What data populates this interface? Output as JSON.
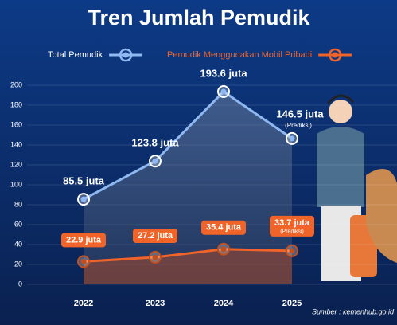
{
  "chart_data": {
    "type": "line",
    "title": "Tren Jumlah Pemudik",
    "categories": [
      "2022",
      "2023",
      "2024",
      "2025"
    ],
    "series": [
      {
        "name": "Total Pemudik",
        "color": "#8fb8f0",
        "values": [
          85.5,
          123.8,
          193.6,
          146.5
        ],
        "value_labels": [
          "85.5 juta",
          "123.8 juta",
          "193.6 juta",
          "146.5 juta"
        ]
      },
      {
        "name": "Pemudik Menggunakan Mobil Pribadi",
        "color": "#f0642a",
        "values": [
          22.9,
          27.2,
          35.4,
          33.7
        ],
        "value_labels": [
          "22.9 juta",
          "27.2 juta",
          "35.4 juta",
          "33.7 juta"
        ]
      }
    ],
    "annotations": [
      "(Prediksi)",
      "(Prediksi)"
    ],
    "ylim": [
      0,
      200
    ],
    "yticks": [
      0,
      20,
      40,
      60,
      80,
      100,
      120,
      140,
      160,
      180,
      200
    ],
    "grid": true,
    "source": "Sumber : kemenhub.go.id"
  }
}
